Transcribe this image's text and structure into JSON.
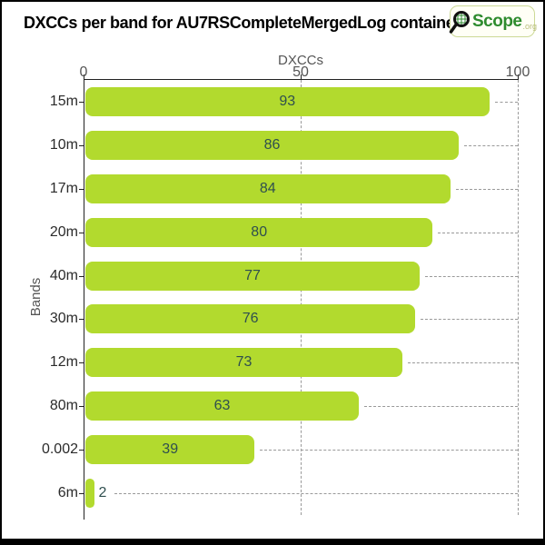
{
  "header": {
    "logo": {
      "name": "QScope.org",
      "text": "Scope",
      "suffix": ".org",
      "icon": "magnifier-icon",
      "text_color": "#2e8b2e",
      "suffix_color": "#b9bd7c",
      "border_color": "#ccd996",
      "background": "#fffff6"
    }
  },
  "chart_data": {
    "type": "bar",
    "orientation": "horizontal",
    "title": "DXCCs per band for AU7RSCompleteMergedLog container.",
    "xlabel": "DXCCs",
    "ylabel": "Bands",
    "categories": [
      "15m",
      "10m",
      "17m",
      "20m",
      "40m",
      "30m",
      "12m",
      "80m",
      "0.002",
      "6m"
    ],
    "values": [
      93,
      86,
      84,
      80,
      77,
      76,
      73,
      63,
      39,
      2
    ],
    "xlim": [
      0,
      100
    ],
    "xticks": [
      0,
      50,
      100
    ],
    "grid": "dashed",
    "bar_color": "#b2da2e",
    "value_label_color": "#2f4f4f",
    "axis_color": "#222222",
    "grid_color": "#999999",
    "tick_label_color": "#555555"
  }
}
